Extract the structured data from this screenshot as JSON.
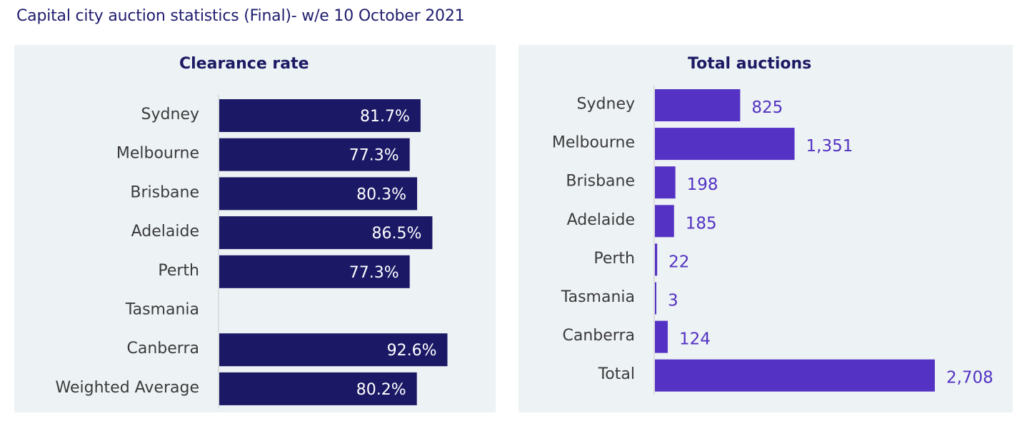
{
  "page_title": "Capital city auction statistics (Final)- w/e 10 October 2021",
  "colors": {
    "left_bar": "#1b1966",
    "right_bar": "#5432c3",
    "panel_bg": "#edf2f5",
    "axis": "#c9c9c9"
  },
  "chart_data": [
    {
      "type": "bar",
      "orientation": "horizontal",
      "title": "Clearance rate",
      "categories": [
        "Sydney",
        "Melbourne",
        "Brisbane",
        "Adelaide",
        "Perth",
        "Tasmania",
        "Canberra",
        "Weighted Average"
      ],
      "values": [
        81.7,
        77.3,
        80.3,
        86.5,
        77.3,
        null,
        92.6,
        80.2
      ],
      "value_labels": [
        "81.7%",
        "77.3%",
        "80.3%",
        "86.5%",
        "77.3%",
        "",
        "92.6%",
        "80.2%"
      ],
      "xlim": [
        0,
        100
      ],
      "grid": false,
      "legend": "none"
    },
    {
      "type": "bar",
      "orientation": "horizontal",
      "title": "Total auctions",
      "categories": [
        "Sydney",
        "Melbourne",
        "Brisbane",
        "Adelaide",
        "Perth",
        "Tasmania",
        "Canberra",
        "Total"
      ],
      "values": [
        825,
        1351,
        198,
        185,
        22,
        3,
        124,
        2708
      ],
      "value_labels": [
        "825",
        "1,351",
        "198",
        "185",
        "22",
        "3",
        "124",
        "2,708"
      ],
      "xlim": [
        0,
        3040
      ],
      "grid": false,
      "legend": "none"
    }
  ]
}
